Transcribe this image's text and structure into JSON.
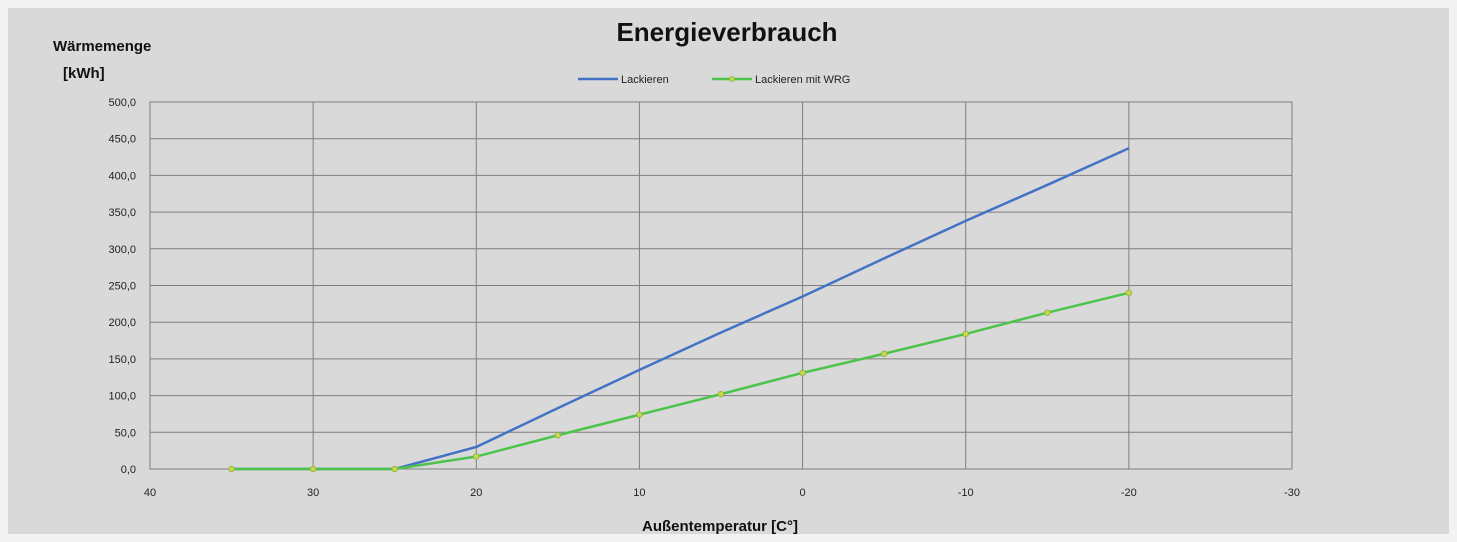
{
  "chart_data": {
    "type": "line",
    "title": "Energieverbrauch",
    "ylabel_line1": "Wärmemenge",
    "ylabel_line2": "[kWh]",
    "xlabel": "Außentemperatur [C°]",
    "xlim": [
      40,
      -30
    ],
    "ylim": [
      0,
      500
    ],
    "x_ticks": [
      40,
      30,
      20,
      10,
      0,
      -10,
      -20,
      -30
    ],
    "x_tick_labels": [
      "40",
      "30",
      "20",
      "10",
      "0",
      "-10",
      "-20",
      "-30"
    ],
    "y_ticks": [
      0,
      50,
      100,
      150,
      200,
      250,
      300,
      350,
      400,
      450,
      500
    ],
    "y_tick_labels": [
      "0,0",
      "50,0",
      "100,0",
      "150,0",
      "200,0",
      "250,0",
      "300,0",
      "350,0",
      "400,0",
      "450,0",
      "500,0"
    ],
    "grid": true,
    "legend_position": "top",
    "series": [
      {
        "name": "Lackieren",
        "color": "#4472c4",
        "markers": false,
        "x": [
          35,
          30,
          25,
          20,
          15,
          10,
          5,
          0,
          -5,
          -10,
          -15,
          -20
        ],
        "y": [
          0,
          0,
          0,
          30,
          83,
          135,
          186,
          235,
          287,
          338,
          387,
          437
        ]
      },
      {
        "name": "Lackieren mit WRG",
        "color": "#4cc44c",
        "markers": true,
        "x": [
          35,
          30,
          25,
          20,
          15,
          10,
          5,
          0,
          -5,
          -10,
          -15,
          -20
        ],
        "y": [
          0,
          0,
          0,
          17,
          46,
          74,
          102,
          131,
          157,
          184,
          213,
          240
        ]
      }
    ]
  }
}
